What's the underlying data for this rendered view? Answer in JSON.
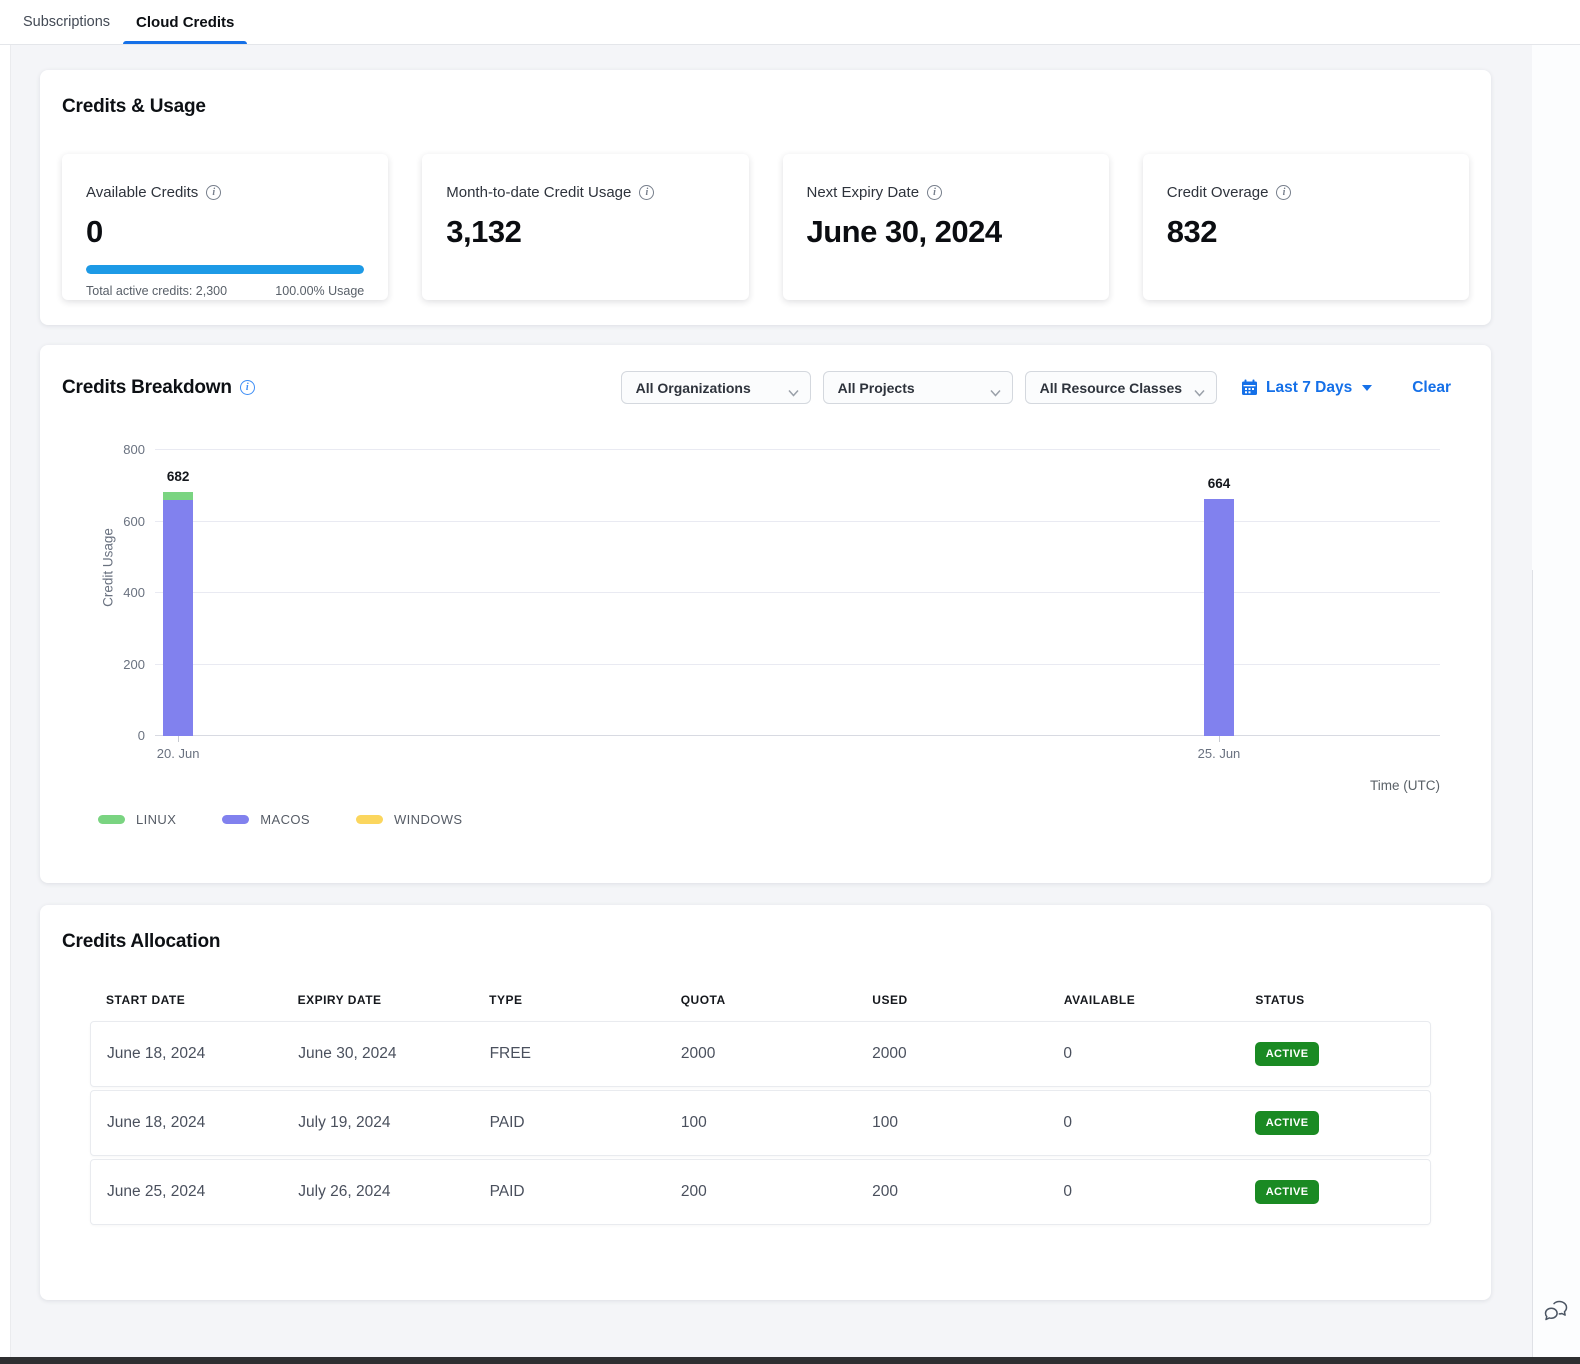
{
  "tabs": [
    {
      "label": "Subscriptions",
      "active": false
    },
    {
      "label": "Cloud Credits",
      "active": true
    }
  ],
  "credits_usage": {
    "title": "Credits & Usage",
    "cards": [
      {
        "label": "Available Credits",
        "value": "0",
        "progress_pct": 100,
        "footer_left": "Total active credits: 2,300",
        "footer_right": "100.00% Usage"
      },
      {
        "label": "Month-to-date Credit Usage",
        "value": "3,132"
      },
      {
        "label": "Next Expiry Date",
        "value": "June 30, 2024"
      },
      {
        "label": "Credit Overage",
        "value": "832"
      }
    ]
  },
  "breakdown": {
    "title": "Credits Breakdown",
    "filters": {
      "organizations": "All Organizations",
      "projects": "All Projects",
      "resource_classes": "All Resource Classes",
      "date_range": "Last 7 Days",
      "clear_label": "Clear"
    }
  },
  "chart_data": {
    "type": "bar",
    "stacked": true,
    "title": "Credits Breakdown",
    "xlabel": "Time (UTC)",
    "ylabel": "Credit Usage",
    "ylim": [
      0,
      800
    ],
    "yticks": [
      0,
      200,
      400,
      600,
      800
    ],
    "grid": true,
    "legend_position": "bottom",
    "categories": [
      "20. Jun",
      "25. Jun"
    ],
    "bar_positions_pct": [
      1.8,
      82.8
    ],
    "series": [
      {
        "name": "LINUX",
        "color": "#7ad481",
        "values": [
          22,
          2
        ]
      },
      {
        "name": "MACOS",
        "color": "#8181ee",
        "values": [
          660,
          662
        ]
      },
      {
        "name": "WINDOWS",
        "color": "#fbd65e",
        "values": [
          0,
          0
        ]
      }
    ],
    "totals": [
      682,
      664
    ]
  },
  "allocation": {
    "title": "Credits Allocation",
    "columns": [
      "START DATE",
      "EXPIRY DATE",
      "TYPE",
      "QUOTA",
      "USED",
      "AVAILABLE",
      "STATUS"
    ],
    "rows": [
      {
        "start": "June 18, 2024",
        "expiry": "June 30, 2024",
        "type": "FREE",
        "quota": "2000",
        "used": "2000",
        "available": "0",
        "status": "ACTIVE"
      },
      {
        "start": "June 18, 2024",
        "expiry": "July 19, 2024",
        "type": "PAID",
        "quota": "100",
        "used": "100",
        "available": "0",
        "status": "ACTIVE"
      },
      {
        "start": "June 25, 2024",
        "expiry": "July 26, 2024",
        "type": "PAID",
        "quota": "200",
        "used": "200",
        "available": "0",
        "status": "ACTIVE"
      }
    ]
  },
  "colors": {
    "accent_blue": "#1570e8",
    "progress_blue": "#1d9ae6",
    "badge_green": "#1a8a23",
    "info_blue": "#3d8df5"
  }
}
